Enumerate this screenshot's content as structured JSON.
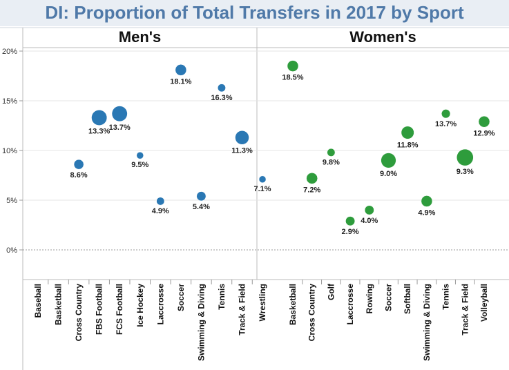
{
  "chart_data": {
    "type": "scatter",
    "title": "DI: Proportion of Total Transfers in 2017 by Sport",
    "y_ticks": [
      "20%",
      "15%",
      "10%",
      "5%",
      "0%"
    ],
    "y_tick_values": [
      20,
      15,
      10,
      5,
      0
    ],
    "ylim": [
      -3,
      20.3
    ],
    "panels": [
      {
        "name": "Men's",
        "color": "#2a78b4",
        "categories": [
          "Baseball",
          "Basketball",
          "Cross Country",
          "FBS Football",
          "FCS Football",
          "Ice Hockey",
          "Laccrosse",
          "Soccer",
          "Swimming & Diving",
          "Tennis",
          "Track & Field",
          "Wrestling"
        ],
        "points": [
          {
            "category": "Cross Country",
            "value": 8.6,
            "label": "8.6%",
            "size": 2
          },
          {
            "category": "FBS Football",
            "value": 13.3,
            "label": "13.3%",
            "size": 5
          },
          {
            "category": "FCS Football",
            "value": 13.7,
            "label": "13.7%",
            "size": 5
          },
          {
            "category": "Ice Hockey",
            "value": 9.5,
            "label": "9.5%",
            "size": 1
          },
          {
            "category": "Laccrosse",
            "value": 4.9,
            "label": "4.9%",
            "size": 1.3
          },
          {
            "category": "Soccer",
            "value": 18.1,
            "label": "18.1%",
            "size": 2.6
          },
          {
            "category": "Swimming & Diving",
            "value": 5.4,
            "label": "5.4%",
            "size": 1.8
          },
          {
            "category": "Tennis",
            "value": 16.3,
            "label": "16.3%",
            "size": 1.3
          },
          {
            "category": "Track & Field",
            "value": 11.3,
            "label": "11.3%",
            "size": 4
          },
          {
            "category": "Wrestling",
            "value": 7.1,
            "label": "7.1%",
            "size": 1
          }
        ]
      },
      {
        "name": "Women's",
        "color": "#2e9c3c",
        "categories": [
          "Basketball",
          "Cross Country",
          "Golf",
          "Laccrosse",
          "Rowing",
          "Soccer",
          "Softball",
          "Swimming & Diving",
          "Tennis",
          "Track & Field",
          "Volleyball"
        ],
        "points": [
          {
            "category": "Basketball",
            "value": 18.5,
            "label": "18.5%",
            "size": 2.6
          },
          {
            "category": "Cross Country",
            "value": 7.2,
            "label": "7.2%",
            "size": 2.6
          },
          {
            "category": "Golf",
            "value": 9.8,
            "label": "9.8%",
            "size": 1.3
          },
          {
            "category": "Laccrosse",
            "value": 2.9,
            "label": "2.9%",
            "size": 1.8
          },
          {
            "category": "Rowing",
            "value": 4.0,
            "label": "4.0%",
            "size": 1.8
          },
          {
            "category": "Soccer",
            "value": 9.0,
            "label": "9.0%",
            "size": 4.7
          },
          {
            "category": "Softball",
            "value": 11.8,
            "label": "11.8%",
            "size": 3.4
          },
          {
            "category": "Swimming & Diving",
            "value": 4.9,
            "label": "4.9%",
            "size": 2.6
          },
          {
            "category": "Tennis",
            "value": 13.7,
            "label": "13.7%",
            "size": 1.6
          },
          {
            "category": "Track & Field",
            "value": 9.3,
            "label": "9.3%",
            "size": 5.8
          },
          {
            "category": "Volleyball",
            "value": 12.9,
            "label": "12.9%",
            "size": 2.6
          }
        ]
      }
    ]
  }
}
